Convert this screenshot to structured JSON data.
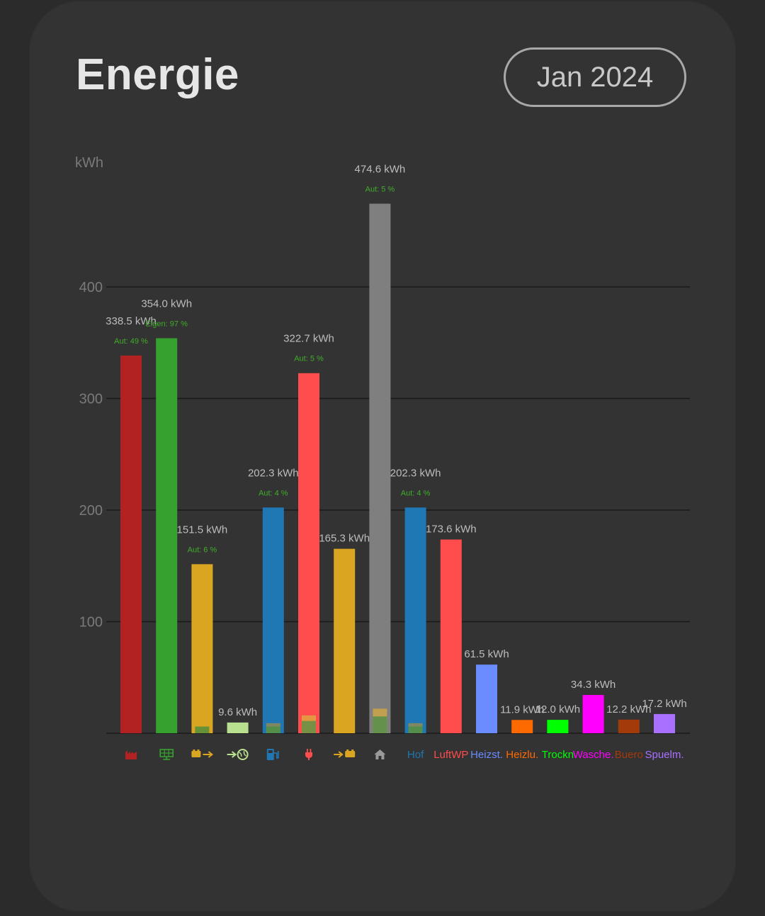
{
  "header": {
    "title": "Energie",
    "period_label": "Jan 2024"
  },
  "chart_data": {
    "type": "bar",
    "ylabel": "kWh",
    "ylim": [
      0,
      500
    ],
    "yticks": [
      100,
      200,
      300,
      400
    ],
    "grid": true,
    "bars": [
      {
        "category": "grid-import",
        "label_type": "icon",
        "icon": "factory-icon",
        "value": 338.5,
        "value_label": "338.5 kWh",
        "sub_label": "Aut: 49 %",
        "color": "#b22222"
      },
      {
        "category": "solar",
        "label_type": "icon",
        "icon": "solar-panel-icon",
        "value": 354.0,
        "value_label": "354.0 kWh",
        "sub_label": "Eigen: 97 %",
        "color": "#36a12e"
      },
      {
        "category": "battery-discharge",
        "label_type": "icon",
        "icon": "battery-out-icon",
        "value": 151.5,
        "value_label": "151.5 kWh",
        "sub_label": "Aut: 6 %",
        "color": "#daa520",
        "overlays": [
          {
            "value": 6,
            "color": "#5a8f3a"
          }
        ]
      },
      {
        "category": "grid-export",
        "label_type": "icon",
        "icon": "grid-export-icon",
        "value": 9.6,
        "value_label": "9.6 kWh",
        "sub_label": "",
        "color": "#b9e08f"
      },
      {
        "category": "ev-charger",
        "label_type": "icon",
        "icon": "ev-charger-icon",
        "value": 202.3,
        "value_label": "202.3 kWh",
        "sub_label": "Aut: 4 %",
        "color": "#1f77b4",
        "overlays": [
          {
            "value": 9,
            "color": "#8a8a5a"
          },
          {
            "value": 6,
            "color": "#4f8f47"
          }
        ]
      },
      {
        "category": "plug",
        "label_type": "icon",
        "icon": "plug-icon",
        "value": 322.7,
        "value_label": "322.7 kWh",
        "sub_label": "Aut: 5 %",
        "color": "#ff4c4c",
        "overlays": [
          {
            "value": 16,
            "color": "#e0a040"
          },
          {
            "value": 11,
            "color": "#6a8f45"
          }
        ]
      },
      {
        "category": "battery-charge",
        "label_type": "icon",
        "icon": "battery-in-icon",
        "value": 165.3,
        "value_label": "165.3 kWh",
        "sub_label": "",
        "color": "#daa520"
      },
      {
        "category": "house",
        "label_type": "icon",
        "icon": "home-icon",
        "value": 474.6,
        "value_label": "474.6 kWh",
        "sub_label": "Aut: 5 %",
        "color": "#7f7f7f",
        "overlays": [
          {
            "value": 22,
            "color": "#c8a44a"
          },
          {
            "value": 15,
            "color": "#5a8f4a"
          }
        ]
      },
      {
        "category": "Hof",
        "label_type": "text",
        "text": "Hof",
        "value": 202.3,
        "value_label": "202.3 kWh",
        "sub_label": "Aut: 4 %",
        "color": "#1f77b4",
        "overlays": [
          {
            "value": 9,
            "color": "#8a8a5a"
          },
          {
            "value": 6,
            "color": "#4f8f47"
          }
        ]
      },
      {
        "category": "LuftWP",
        "label_type": "text",
        "text": "LuftWP",
        "value": 173.6,
        "value_label": "173.6 kWh",
        "sub_label": "",
        "color": "#ff4c4c"
      },
      {
        "category": "Heizst.",
        "label_type": "text",
        "text": "Heizst.",
        "value": 61.5,
        "value_label": "61.5 kWh",
        "sub_label": "",
        "color": "#6b8cff"
      },
      {
        "category": "Heizlu.",
        "label_type": "text",
        "text": "Heizlu.",
        "value": 11.9,
        "value_label": "11.9 kWh",
        "sub_label": "",
        "color": "#ff6a00"
      },
      {
        "category": "Trockn",
        "label_type": "text",
        "text": "Trockn",
        "value": 12.0,
        "value_label": "12.0 kWh",
        "sub_label": "",
        "color": "#00ff00"
      },
      {
        "category": "Wasche.",
        "label_type": "text",
        "text": "Wasche.",
        "value": 34.3,
        "value_label": "34.3 kWh",
        "sub_label": "",
        "color": "#ff00ff"
      },
      {
        "category": "Buero",
        "label_type": "text",
        "text": "Buero",
        "value": 12.2,
        "value_label": "12.2 kWh",
        "sub_label": "",
        "color": "#a33a0a"
      },
      {
        "category": "Spuelm.",
        "label_type": "text",
        "text": "Spuelm.",
        "value": 17.2,
        "value_label": "17.2 kWh",
        "sub_label": "",
        "color": "#a970ff"
      }
    ]
  }
}
